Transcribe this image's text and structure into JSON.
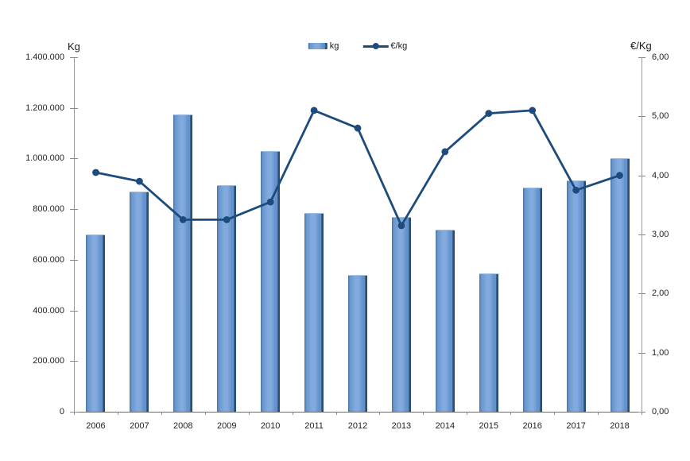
{
  "colors": {
    "bar_edge_left": "#47739f",
    "bar_mid": "#6896cd",
    "bar_highlight": "#82aade",
    "bar_shade": "#6090ca",
    "bar_edge_dark": "#2b4e77",
    "line": "#1d4b7c",
    "text": "#202020",
    "axis_side": "#9a9a9a",
    "axis_bottom": "#6b6b6b"
  },
  "axis_titles": {
    "left": "Kg",
    "right": "€/Kg"
  },
  "legend": {
    "items": [
      {
        "label": "kg",
        "series": "bar"
      },
      {
        "label": "€/kg",
        "series": "line"
      }
    ]
  },
  "left_axis": {
    "tick_labels": [
      "1.400.000",
      "1.200.000",
      "1.000.000",
      "800.000",
      "600.000",
      "400.000",
      "200.000",
      "0"
    ]
  },
  "right_axis": {
    "tick_labels": [
      "6,00",
      "5,00",
      "4,00",
      "3,00",
      "2,00",
      "1,00",
      "0,00"
    ]
  },
  "chart_data": {
    "type": "bar",
    "subtype": "combo-bar-line",
    "title": "",
    "categories": [
      "2006",
      "2007",
      "2008",
      "2009",
      "2010",
      "2011",
      "2012",
      "2013",
      "2014",
      "2015",
      "2016",
      "2017",
      "2018"
    ],
    "series": [
      {
        "name": "kg",
        "type": "bar",
        "axis": "left",
        "values": [
          700000,
          870000,
          1175000,
          895000,
          1030000,
          785000,
          540000,
          770000,
          720000,
          545000,
          885000,
          915000,
          1000000
        ]
      },
      {
        "name": "€/kg",
        "type": "line",
        "axis": "right",
        "values": [
          4.05,
          3.9,
          3.25,
          3.25,
          3.55,
          5.1,
          4.8,
          3.15,
          4.4,
          5.05,
          5.1,
          3.75,
          4.0
        ]
      }
    ],
    "xlabel": "",
    "ylabel_left": "Kg",
    "ylabel_right": "€/Kg",
    "left_ylim": [
      0,
      1400000
    ],
    "left_tick_step": 200000,
    "right_ylim": [
      0,
      6
    ],
    "right_tick_step": 1,
    "grid": false,
    "legend_position": "top-center"
  }
}
